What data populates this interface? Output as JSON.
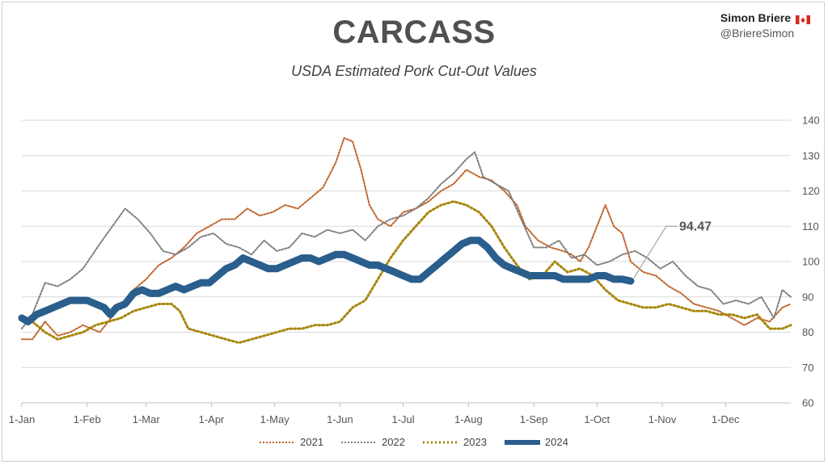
{
  "author": {
    "name": "Simon Briere",
    "handle": "@BriereSimon",
    "flag_icon": "canada-flag-icon"
  },
  "colors": {
    "2021": "#c0642a",
    "2022": "#7f7f7f",
    "2023": "#a8860c",
    "2024": "#2a5e8c",
    "grid": "#d9d9d9"
  },
  "chart_data": {
    "type": "line",
    "title": "CARCASS",
    "subtitle": "USDA Estimated Pork Cut-Out Values",
    "xlabel": "",
    "ylabel": "",
    "ylim": [
      60,
      140
    ],
    "yticks": [
      "60",
      "70",
      "80",
      "90",
      "100",
      "110",
      "120",
      "130",
      "140"
    ],
    "xtick_labels": [
      "1-Jan",
      "1-Feb",
      "1-Mar",
      "1-Apr",
      "1-May",
      "1-Jun",
      "1-Jul",
      "1-Aug",
      "1-Sep",
      "1-Oct",
      "1-Nov",
      "1-Dec"
    ],
    "xtick_days": [
      1,
      32,
      60,
      91,
      121,
      152,
      182,
      213,
      244,
      274,
      305,
      335
    ],
    "xlim_days": [
      1,
      366
    ],
    "grid": true,
    "legend_position": "bottom",
    "annotation": {
      "text": "94.47",
      "day": 290,
      "value": 94.47
    },
    "series": [
      {
        "name": "2021",
        "style": "dotted",
        "points": [
          [
            1,
            78
          ],
          [
            6,
            78
          ],
          [
            12,
            83
          ],
          [
            18,
            79
          ],
          [
            24,
            80
          ],
          [
            30,
            82
          ],
          [
            38,
            80
          ],
          [
            46,
            86
          ],
          [
            54,
            92
          ],
          [
            60,
            95
          ],
          [
            66,
            99
          ],
          [
            72,
            101
          ],
          [
            78,
            104
          ],
          [
            84,
            108
          ],
          [
            90,
            110
          ],
          [
            96,
            112
          ],
          [
            102,
            112
          ],
          [
            108,
            115
          ],
          [
            114,
            113
          ],
          [
            120,
            114
          ],
          [
            126,
            116
          ],
          [
            132,
            115
          ],
          [
            138,
            118
          ],
          [
            144,
            121
          ],
          [
            150,
            128
          ],
          [
            154,
            135
          ],
          [
            158,
            134
          ],
          [
            162,
            126
          ],
          [
            166,
            116
          ],
          [
            170,
            112
          ],
          [
            176,
            110
          ],
          [
            182,
            114
          ],
          [
            188,
            115
          ],
          [
            194,
            117
          ],
          [
            200,
            120
          ],
          [
            206,
            122
          ],
          [
            212,
            126
          ],
          [
            218,
            124
          ],
          [
            224,
            123
          ],
          [
            230,
            120
          ],
          [
            236,
            116
          ],
          [
            240,
            110
          ],
          [
            246,
            106
          ],
          [
            252,
            104
          ],
          [
            258,
            103
          ],
          [
            262,
            102
          ],
          [
            266,
            100
          ],
          [
            270,
            104
          ],
          [
            274,
            110
          ],
          [
            278,
            116
          ],
          [
            282,
            110
          ],
          [
            286,
            108
          ],
          [
            290,
            100
          ],
          [
            296,
            97
          ],
          [
            302,
            96
          ],
          [
            308,
            93
          ],
          [
            314,
            91
          ],
          [
            320,
            88
          ],
          [
            326,
            87
          ],
          [
            332,
            86
          ],
          [
            338,
            84
          ],
          [
            344,
            82
          ],
          [
            350,
            84
          ],
          [
            356,
            83
          ],
          [
            362,
            87
          ],
          [
            366,
            88
          ]
        ]
      },
      {
        "name": "2022",
        "style": "dotted",
        "points": [
          [
            1,
            81
          ],
          [
            6,
            85
          ],
          [
            12,
            94
          ],
          [
            18,
            93
          ],
          [
            24,
            95
          ],
          [
            30,
            98
          ],
          [
            38,
            105
          ],
          [
            44,
            110
          ],
          [
            50,
            115
          ],
          [
            56,
            112
          ],
          [
            62,
            108
          ],
          [
            68,
            103
          ],
          [
            74,
            102
          ],
          [
            80,
            104
          ],
          [
            86,
            107
          ],
          [
            92,
            108
          ],
          [
            98,
            105
          ],
          [
            104,
            104
          ],
          [
            110,
            102
          ],
          [
            116,
            106
          ],
          [
            122,
            103
          ],
          [
            128,
            104
          ],
          [
            134,
            108
          ],
          [
            140,
            107
          ],
          [
            146,
            109
          ],
          [
            152,
            108
          ],
          [
            158,
            109
          ],
          [
            164,
            106
          ],
          [
            170,
            110
          ],
          [
            176,
            112
          ],
          [
            182,
            113
          ],
          [
            188,
            115
          ],
          [
            194,
            118
          ],
          [
            200,
            122
          ],
          [
            206,
            125
          ],
          [
            212,
            129
          ],
          [
            216,
            131
          ],
          [
            220,
            124
          ],
          [
            226,
            122
          ],
          [
            232,
            120
          ],
          [
            238,
            112
          ],
          [
            244,
            104
          ],
          [
            250,
            104
          ],
          [
            256,
            106
          ],
          [
            262,
            101
          ],
          [
            268,
            102
          ],
          [
            274,
            99
          ],
          [
            280,
            100
          ],
          [
            286,
            102
          ],
          [
            292,
            103
          ],
          [
            298,
            101
          ],
          [
            304,
            98
          ],
          [
            310,
            100
          ],
          [
            316,
            96
          ],
          [
            322,
            93
          ],
          [
            328,
            92
          ],
          [
            334,
            88
          ],
          [
            340,
            89
          ],
          [
            346,
            88
          ],
          [
            352,
            90
          ],
          [
            358,
            84
          ],
          [
            362,
            92
          ],
          [
            366,
            90
          ]
        ]
      },
      {
        "name": "2023",
        "style": "dotted",
        "points": [
          [
            1,
            84
          ],
          [
            6,
            83
          ],
          [
            12,
            80
          ],
          [
            18,
            78
          ],
          [
            24,
            79
          ],
          [
            30,
            80
          ],
          [
            36,
            82
          ],
          [
            42,
            83
          ],
          [
            48,
            84
          ],
          [
            54,
            86
          ],
          [
            60,
            87
          ],
          [
            66,
            88
          ],
          [
            72,
            88
          ],
          [
            76,
            86
          ],
          [
            80,
            81
          ],
          [
            86,
            80
          ],
          [
            92,
            79
          ],
          [
            98,
            78
          ],
          [
            104,
            77
          ],
          [
            110,
            78
          ],
          [
            116,
            79
          ],
          [
            122,
            80
          ],
          [
            128,
            81
          ],
          [
            134,
            81
          ],
          [
            140,
            82
          ],
          [
            146,
            82
          ],
          [
            152,
            83
          ],
          [
            158,
            87
          ],
          [
            164,
            89
          ],
          [
            170,
            95
          ],
          [
            176,
            101
          ],
          [
            182,
            106
          ],
          [
            188,
            110
          ],
          [
            194,
            114
          ],
          [
            200,
            116
          ],
          [
            206,
            117
          ],
          [
            212,
            116
          ],
          [
            218,
            114
          ],
          [
            224,
            110
          ],
          [
            230,
            104
          ],
          [
            236,
            99
          ],
          [
            242,
            95
          ],
          [
            248,
            96
          ],
          [
            254,
            100
          ],
          [
            260,
            97
          ],
          [
            266,
            98
          ],
          [
            272,
            96
          ],
          [
            278,
            92
          ],
          [
            284,
            89
          ],
          [
            290,
            88
          ],
          [
            296,
            87
          ],
          [
            302,
            87
          ],
          [
            308,
            88
          ],
          [
            314,
            87
          ],
          [
            320,
            86
          ],
          [
            326,
            86
          ],
          [
            332,
            85
          ],
          [
            338,
            85
          ],
          [
            344,
            84
          ],
          [
            350,
            85
          ],
          [
            356,
            81
          ],
          [
            362,
            81
          ],
          [
            366,
            82
          ]
        ]
      },
      {
        "name": "2024",
        "style": "solid",
        "points": [
          [
            1,
            84
          ],
          [
            4,
            83
          ],
          [
            8,
            85
          ],
          [
            12,
            86
          ],
          [
            16,
            87
          ],
          [
            20,
            88
          ],
          [
            24,
            89
          ],
          [
            28,
            89
          ],
          [
            32,
            89
          ],
          [
            36,
            88
          ],
          [
            40,
            87
          ],
          [
            43,
            85
          ],
          [
            46,
            87
          ],
          [
            50,
            88
          ],
          [
            54,
            91
          ],
          [
            58,
            92
          ],
          [
            62,
            91
          ],
          [
            66,
            91
          ],
          [
            70,
            92
          ],
          [
            74,
            93
          ],
          [
            78,
            92
          ],
          [
            82,
            93
          ],
          [
            86,
            94
          ],
          [
            90,
            94
          ],
          [
            94,
            96
          ],
          [
            98,
            98
          ],
          [
            102,
            99
          ],
          [
            106,
            101
          ],
          [
            110,
            100
          ],
          [
            114,
            99
          ],
          [
            118,
            98
          ],
          [
            122,
            98
          ],
          [
            126,
            99
          ],
          [
            130,
            100
          ],
          [
            134,
            101
          ],
          [
            138,
            101
          ],
          [
            142,
            100
          ],
          [
            146,
            101
          ],
          [
            150,
            102
          ],
          [
            154,
            102
          ],
          [
            158,
            101
          ],
          [
            162,
            100
          ],
          [
            166,
            99
          ],
          [
            170,
            99
          ],
          [
            174,
            98
          ],
          [
            178,
            97
          ],
          [
            182,
            96
          ],
          [
            186,
            95
          ],
          [
            190,
            95
          ],
          [
            194,
            97
          ],
          [
            198,
            99
          ],
          [
            202,
            101
          ],
          [
            206,
            103
          ],
          [
            210,
            105
          ],
          [
            214,
            106
          ],
          [
            218,
            106
          ],
          [
            222,
            104
          ],
          [
            226,
            101
          ],
          [
            230,
            99
          ],
          [
            234,
            98
          ],
          [
            238,
            97
          ],
          [
            242,
            96
          ],
          [
            246,
            96
          ],
          [
            250,
            96
          ],
          [
            254,
            96
          ],
          [
            258,
            95
          ],
          [
            262,
            95
          ],
          [
            266,
            95
          ],
          [
            270,
            95
          ],
          [
            274,
            96
          ],
          [
            278,
            96
          ],
          [
            282,
            95
          ],
          [
            286,
            95
          ],
          [
            290,
            94.47
          ]
        ]
      }
    ]
  }
}
